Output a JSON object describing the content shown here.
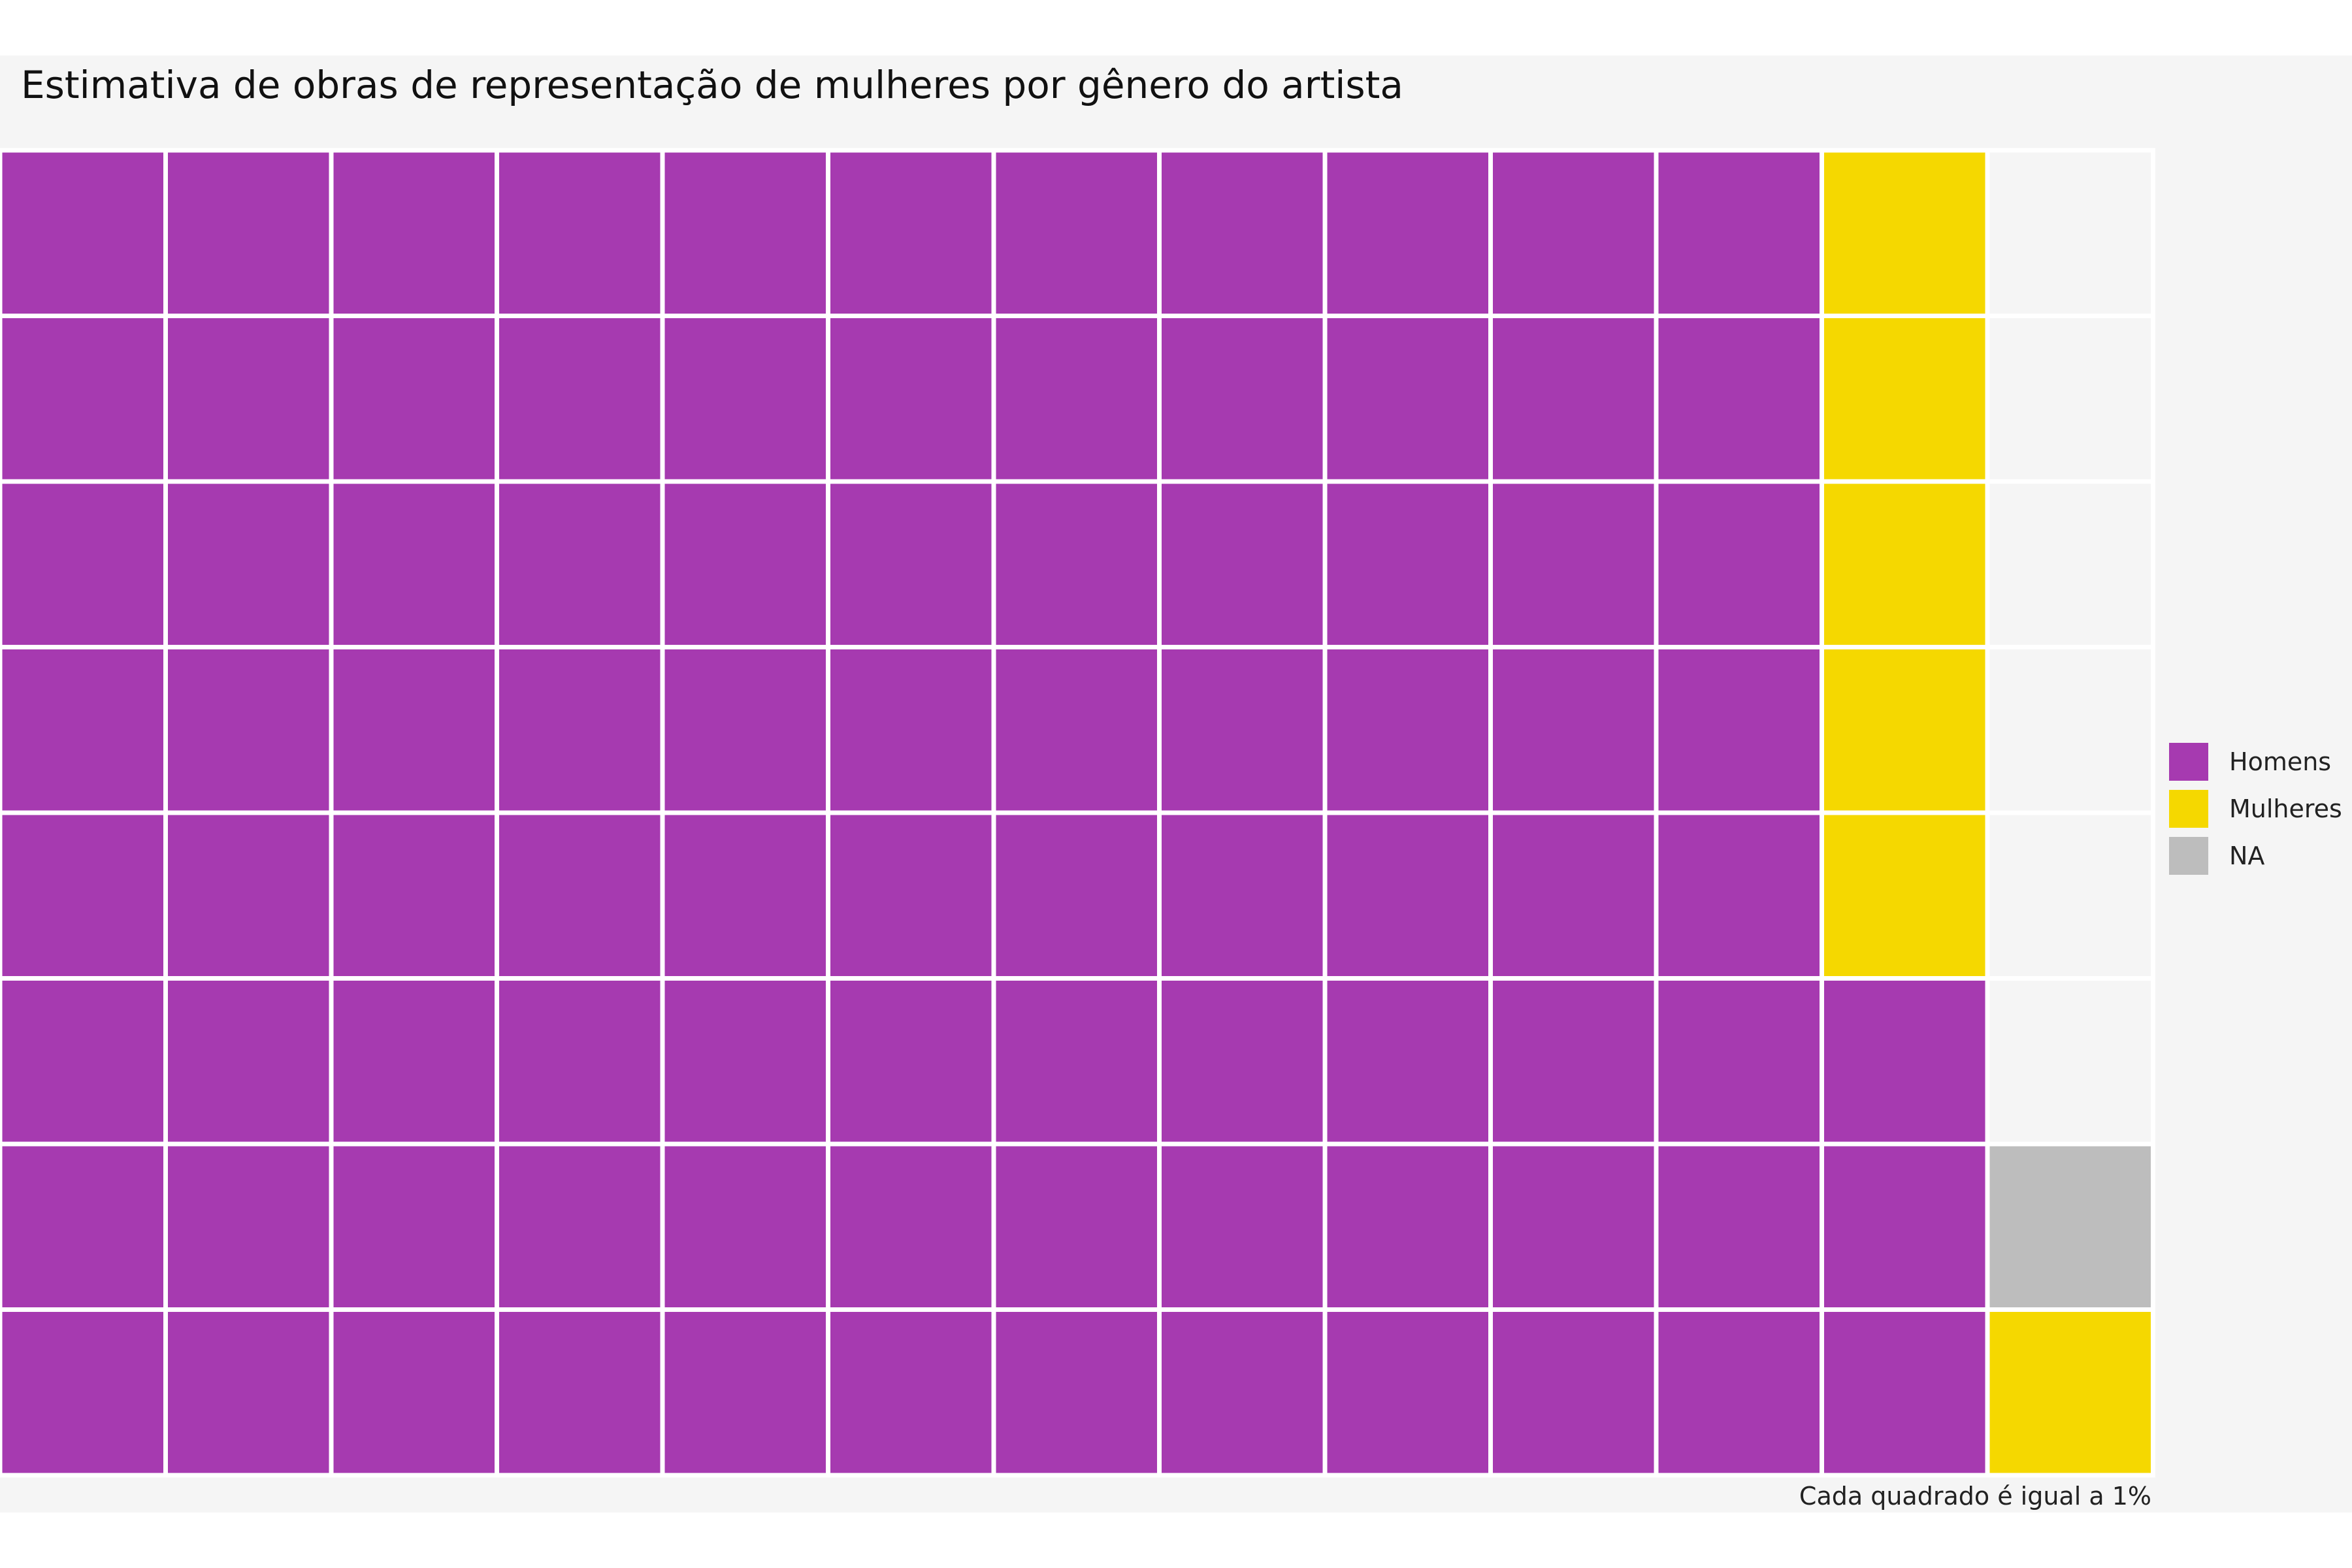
{
  "chart_data": {
    "type": "waffle",
    "title": "Estimativa de obras de representação de mulheres por gênero do artista",
    "caption": "Cada quadrado é igual a 1%",
    "units_per_square": "1%",
    "rows": 8,
    "columns": 13,
    "fill_order": "column-wise, bottom to top, left to right",
    "categories": [
      "Homens",
      "Mulheres",
      "NA"
    ],
    "values": [
      91,
      6,
      1
    ],
    "empty_squares": 6,
    "colors": {
      "Homens": "#a63ab0",
      "Mulheres": "#f5d800",
      "NA": "#bdbdbd",
      "empty": "#f5f5f5"
    },
    "legend": {
      "position": "right",
      "items": [
        {
          "label": "Homens",
          "color": "#a63ab0"
        },
        {
          "label": "Mulheres",
          "color": "#f5d800"
        },
        {
          "label": "NA",
          "color": "#bdbdbd"
        }
      ]
    },
    "grid": false
  }
}
